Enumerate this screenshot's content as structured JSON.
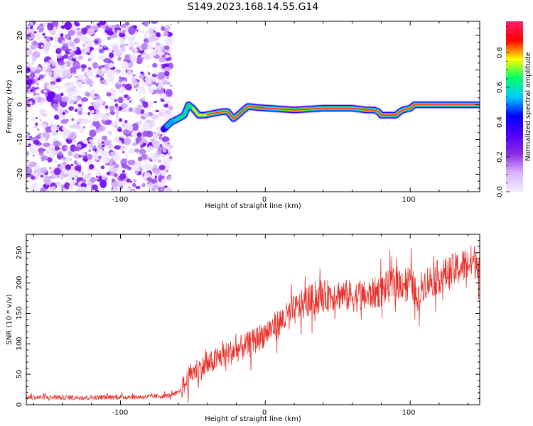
{
  "title": "S149.2023.168.14.55.G14",
  "chart_data": [
    {
      "type": "heatmap",
      "xlabel": "Height of straight line (km)",
      "ylabel": "Frequency (Hz)",
      "xlim": [
        -165,
        148
      ],
      "ylim": [
        -25,
        24
      ],
      "xticks": [
        "-100",
        "0",
        "100"
      ],
      "yticks": [
        "-20",
        "-10",
        "0",
        "10",
        "20"
      ],
      "colormap": [
        "#f2ecff",
        "#d9b3ff",
        "#8a2be2",
        "#5000ff",
        "#0000ff",
        "#00ccff",
        "#00ff66",
        "#ffff00",
        "#ff0000",
        "#ff1e6e"
      ],
      "noise_region": {
        "x": [
          -165,
          -65
        ],
        "y": [
          -25,
          24
        ]
      },
      "ridge": {
        "x": [
          -70,
          -65,
          -60,
          -56,
          -53,
          -50,
          -46,
          -42,
          -36,
          -30,
          -26,
          -22,
          -19,
          -15,
          -12,
          -5,
          20,
          40,
          60,
          70,
          75,
          78,
          80,
          85,
          90,
          93,
          95,
          100,
          103,
          108,
          120,
          148
        ],
        "y": [
          -7,
          -5,
          -4,
          -3,
          0,
          -1,
          -3,
          -3,
          -2.5,
          -2,
          -2,
          -4,
          -3,
          -1.5,
          -0.5,
          -0.8,
          -1.5,
          -1,
          -1,
          -1.5,
          -1.5,
          -2,
          -3,
          -3,
          -3,
          -2,
          -1.5,
          -1,
          0,
          0,
          0,
          0
        ]
      },
      "colorbar": {
        "label": "Normalized spectral amplitude",
        "range": [
          0,
          1
        ],
        "ticks": [
          "0.0",
          "0.2",
          "0.4",
          "0.6",
          "0.8"
        ]
      }
    },
    {
      "type": "line",
      "xlabel": "Height of straight line (km)",
      "ylabel": "SNR (10 * v/v)",
      "xlim": [
        -165,
        148
      ],
      "ylim": [
        0,
        280
      ],
      "xticks": [
        "-100",
        "0",
        "100"
      ],
      "yticks": [
        "0",
        "50",
        "100",
        "150",
        "200",
        "250"
      ],
      "color": "#e8302a",
      "series": [
        {
          "x": [
            -165,
            -120,
            -80,
            -65,
            -60,
            -55,
            -50,
            -40,
            -30,
            -20,
            -10,
            0,
            10,
            20,
            30,
            40,
            50,
            60,
            70,
            80,
            90,
            100,
            103,
            105,
            108,
            110,
            115,
            120,
            130,
            140,
            148
          ],
          "y": [
            12,
            12,
            13,
            15,
            20,
            35,
            55,
            65,
            80,
            90,
            100,
            118,
            135,
            155,
            170,
            178,
            182,
            178,
            178,
            188,
            200,
            202,
            190,
            160,
            195,
            200,
            205,
            210,
            220,
            232,
            238
          ]
        }
      ]
    }
  ]
}
